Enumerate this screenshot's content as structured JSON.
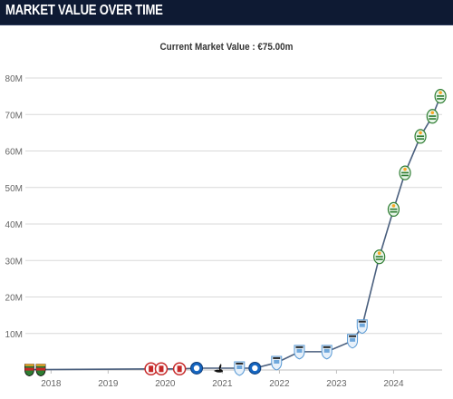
{
  "header": {
    "title": "MARKET VALUE OVER TIME"
  },
  "subtitle": "Current Market Value : €75.00m",
  "colors": {
    "header_bg": "#0e1a33",
    "line": "#4a5f7e",
    "grid": "#d9d9d9",
    "axis_text": "#666666",
    "plot_bg": "#ffffff"
  },
  "chart_data": {
    "type": "line",
    "title": "",
    "xlabel": "",
    "ylabel": "",
    "unit": "M",
    "ylim": [
      0,
      80
    ],
    "yticks": [
      {
        "value": 10,
        "label": "10M"
      },
      {
        "value": 20,
        "label": "20M"
      },
      {
        "value": 30,
        "label": "30M"
      },
      {
        "value": 40,
        "label": "40M"
      },
      {
        "value": 50,
        "label": "50M"
      },
      {
        "value": 60,
        "label": "60M"
      },
      {
        "value": 70,
        "label": "70M"
      },
      {
        "value": 80,
        "label": "80M"
      }
    ],
    "xlim": [
      2017.55,
      2024.85
    ],
    "xticks": [
      {
        "value": 2018,
        "label": "2018"
      },
      {
        "value": 2019,
        "label": "2019"
      },
      {
        "value": 2020,
        "label": "2020"
      },
      {
        "value": 2021,
        "label": "2021"
      },
      {
        "value": 2022,
        "label": "2022"
      },
      {
        "value": 2023,
        "label": "2023"
      },
      {
        "value": 2024,
        "label": "2024"
      }
    ],
    "grid": true,
    "points": [
      {
        "x": 2017.62,
        "y": 0.1,
        "club": "stripes-badge-icon"
      },
      {
        "x": 2017.82,
        "y": 0.1,
        "club": "stripes-badge-icon"
      },
      {
        "x": 2019.75,
        "y": 0.3,
        "club": "red-crest-icon"
      },
      {
        "x": 2019.93,
        "y": 0.3,
        "club": "red-crest-icon"
      },
      {
        "x": 2020.25,
        "y": 0.3,
        "club": "red-crest-icon"
      },
      {
        "x": 2020.55,
        "y": 0.5,
        "club": "blue-crest-icon"
      },
      {
        "x": 2020.93,
        "y": 0.5,
        "club": "swan-crest-icon"
      },
      {
        "x": 2021.3,
        "y": 0.5,
        "club": "sky-blue-crest-icon"
      },
      {
        "x": 2021.57,
        "y": 0.5,
        "club": "blue-crest-icon"
      },
      {
        "x": 2021.95,
        "y": 2,
        "club": "sky-blue-crest-icon"
      },
      {
        "x": 2022.35,
        "y": 5,
        "club": "sky-blue-crest-icon"
      },
      {
        "x": 2022.83,
        "y": 5,
        "club": "sky-blue-crest-icon"
      },
      {
        "x": 2023.28,
        "y": 8,
        "club": "sky-blue-crest-icon"
      },
      {
        "x": 2023.45,
        "y": 12,
        "club": "sky-blue-crest-icon"
      },
      {
        "x": 2023.75,
        "y": 31,
        "club": "green-lion-crest-icon"
      },
      {
        "x": 2024.0,
        "y": 44,
        "club": "green-lion-crest-icon"
      },
      {
        "x": 2024.2,
        "y": 54,
        "club": "green-lion-crest-icon"
      },
      {
        "x": 2024.47,
        "y": 64,
        "club": "green-lion-crest-icon"
      },
      {
        "x": 2024.68,
        "y": 69.5,
        "club": "green-lion-crest-icon"
      },
      {
        "x": 2024.82,
        "y": 75,
        "club": "green-lion-crest-icon"
      }
    ]
  }
}
